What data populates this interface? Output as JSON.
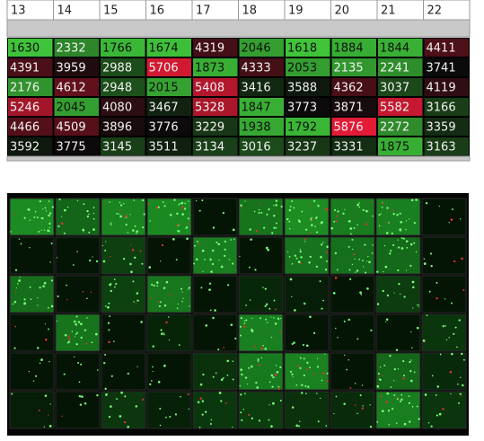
{
  "table": {
    "columns": [
      "13",
      "14",
      "15",
      "16",
      "17",
      "18",
      "19",
      "20",
      "21",
      "22"
    ],
    "rows": [
      [
        1630,
        2332,
        1766,
        1674,
        4319,
        2046,
        1618,
        1884,
        1844,
        4411
      ],
      [
        4391,
        3959,
        2988,
        5706,
        1873,
        4333,
        2053,
        2135,
        2241,
        3741
      ],
      [
        2176,
        4612,
        2948,
        2015,
        5408,
        3416,
        3588,
        4362,
        3037,
        4119
      ],
      [
        5246,
        2045,
        4080,
        3467,
        5328,
        1847,
        3773,
        3871,
        5582,
        3166
      ],
      [
        4466,
        4509,
        3896,
        3776,
        3229,
        1938,
        1792,
        5876,
        2272,
        3359
      ],
      [
        3592,
        3775,
        3145,
        3511,
        3134,
        3016,
        3237,
        3331,
        1875,
        3163
      ]
    ],
    "color_low": "#3fc43a",
    "color_mid": "#0a0a0a",
    "color_high": "#e21b36"
  }
}
